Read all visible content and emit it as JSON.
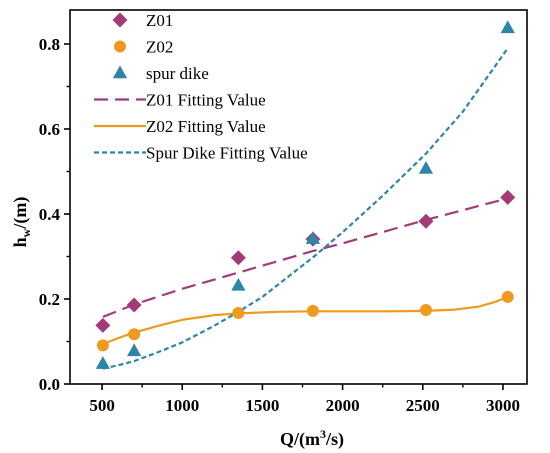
{
  "chart_data": {
    "type": "scatter",
    "xlabel": "Q/(m³/s)",
    "ylabel": "hw/(m)",
    "xlim": [
      300,
      3150
    ],
    "ylim": [
      0,
      0.88
    ],
    "x_ticks": [
      "500",
      "1000",
      "1500",
      "2000",
      "2500",
      "3000"
    ],
    "y_ticks": [
      "0.0",
      "0.2",
      "0.4",
      "0.6",
      "0.8"
    ],
    "legend_position": "top-left",
    "series": [
      {
        "name": "Z01",
        "kind": "points",
        "marker": "diamond",
        "color": "#A23C79",
        "points": [
          [
            505,
            0.138
          ],
          [
            700,
            0.186
          ],
          [
            1350,
            0.297
          ],
          [
            1815,
            0.341
          ],
          [
            2520,
            0.383
          ],
          [
            3030,
            0.439
          ]
        ]
      },
      {
        "name": "Z02",
        "kind": "points",
        "marker": "circle",
        "color": "#EE9A1E",
        "points": [
          [
            505,
            0.091
          ],
          [
            700,
            0.117
          ],
          [
            1350,
            0.167
          ],
          [
            1815,
            0.172
          ],
          [
            2520,
            0.174
          ],
          [
            3030,
            0.205
          ]
        ]
      },
      {
        "name": "spur dike",
        "kind": "points",
        "marker": "triangle",
        "color": "#2F85A8",
        "points": [
          [
            505,
            0.048
          ],
          [
            700,
            0.078
          ],
          [
            1350,
            0.232
          ],
          [
            1815,
            0.342
          ],
          [
            2520,
            0.507
          ],
          [
            3030,
            0.838
          ]
        ]
      },
      {
        "name": "Z01 Fitting Value",
        "kind": "line",
        "dash": "long-dash",
        "color": "#A23C79",
        "points": [
          [
            505,
            0.158
          ],
          [
            700,
            0.187
          ],
          [
            1000,
            0.224
          ],
          [
            1350,
            0.262
          ],
          [
            1815,
            0.313
          ],
          [
            2000,
            0.331
          ],
          [
            2520,
            0.386
          ],
          [
            3030,
            0.437
          ]
        ]
      },
      {
        "name": "Z02 Fitting Value",
        "kind": "line",
        "dash": "solid",
        "color": "#EE9A1E",
        "points": [
          [
            505,
            0.094
          ],
          [
            600,
            0.108
          ],
          [
            700,
            0.121
          ],
          [
            850,
            0.137
          ],
          [
            1000,
            0.151
          ],
          [
            1200,
            0.162
          ],
          [
            1350,
            0.166
          ],
          [
            1600,
            0.17
          ],
          [
            1815,
            0.171
          ],
          [
            2100,
            0.171
          ],
          [
            2300,
            0.171
          ],
          [
            2520,
            0.172
          ],
          [
            2700,
            0.175
          ],
          [
            2850,
            0.182
          ],
          [
            2950,
            0.193
          ],
          [
            3030,
            0.205
          ]
        ]
      },
      {
        "name": "Spur Dike Fitting Value",
        "kind": "line",
        "dash": "short-dash",
        "color": "#2F85A8",
        "points": [
          [
            505,
            0.036
          ],
          [
            600,
            0.044
          ],
          [
            700,
            0.054
          ],
          [
            850,
            0.075
          ],
          [
            1000,
            0.098
          ],
          [
            1200,
            0.137
          ],
          [
            1350,
            0.17
          ],
          [
            1500,
            0.205
          ],
          [
            1815,
            0.298
          ],
          [
            2000,
            0.357
          ],
          [
            2250,
            0.443
          ],
          [
            2520,
            0.542
          ],
          [
            2750,
            0.641
          ],
          [
            3030,
            0.79
          ]
        ]
      }
    ]
  }
}
